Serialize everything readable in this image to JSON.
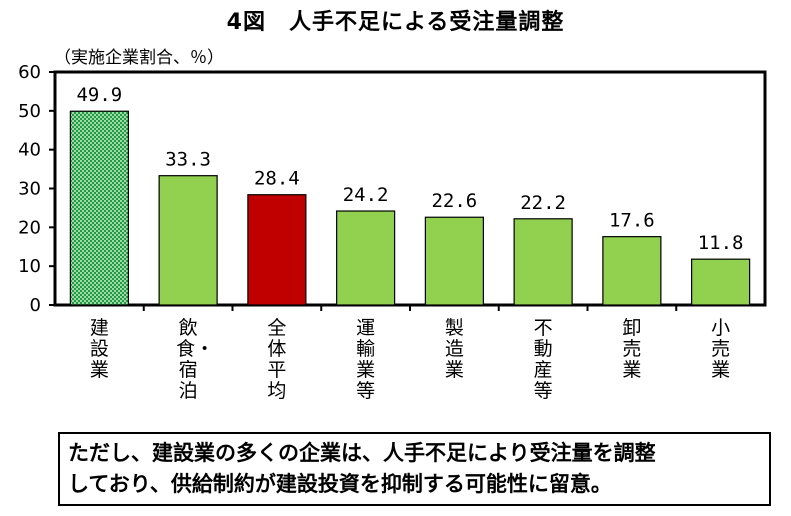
{
  "title": "4図　人手不足による受注量調整",
  "unit_label": "（実施企業割合、％）",
  "note_lines": [
    "ただし、建設業の多くの企業は、人手不足により受注量を調整",
    "しており、供給制約が建設投資を抑制する可能性に留意。"
  ],
  "chart_data": {
    "type": "bar",
    "categories": [
      "建設業",
      "飲食・宿泊",
      "全体平均",
      "運輸業等",
      "製造業",
      "不動産等",
      "卸売業",
      "小売業"
    ],
    "values": [
      49.9,
      33.3,
      28.4,
      24.2,
      22.6,
      22.2,
      17.6,
      11.8
    ],
    "value_labels": [
      "49.9",
      "33.3",
      "28.4",
      "24.2",
      "22.6",
      "22.2",
      "17.6",
      "11.8"
    ],
    "ylim": [
      0,
      60
    ],
    "yticks": [
      0,
      10,
      20,
      30,
      40,
      50,
      60
    ],
    "bar_colors": [
      "#22aa44",
      "#92d050",
      "#c00000",
      "#92d050",
      "#92d050",
      "#92d050",
      "#92d050",
      "#92d050"
    ],
    "bar_patterns": [
      "dots",
      "solid",
      "solid",
      "solid",
      "solid",
      "solid",
      "solid",
      "solid"
    ],
    "grid": false
  }
}
